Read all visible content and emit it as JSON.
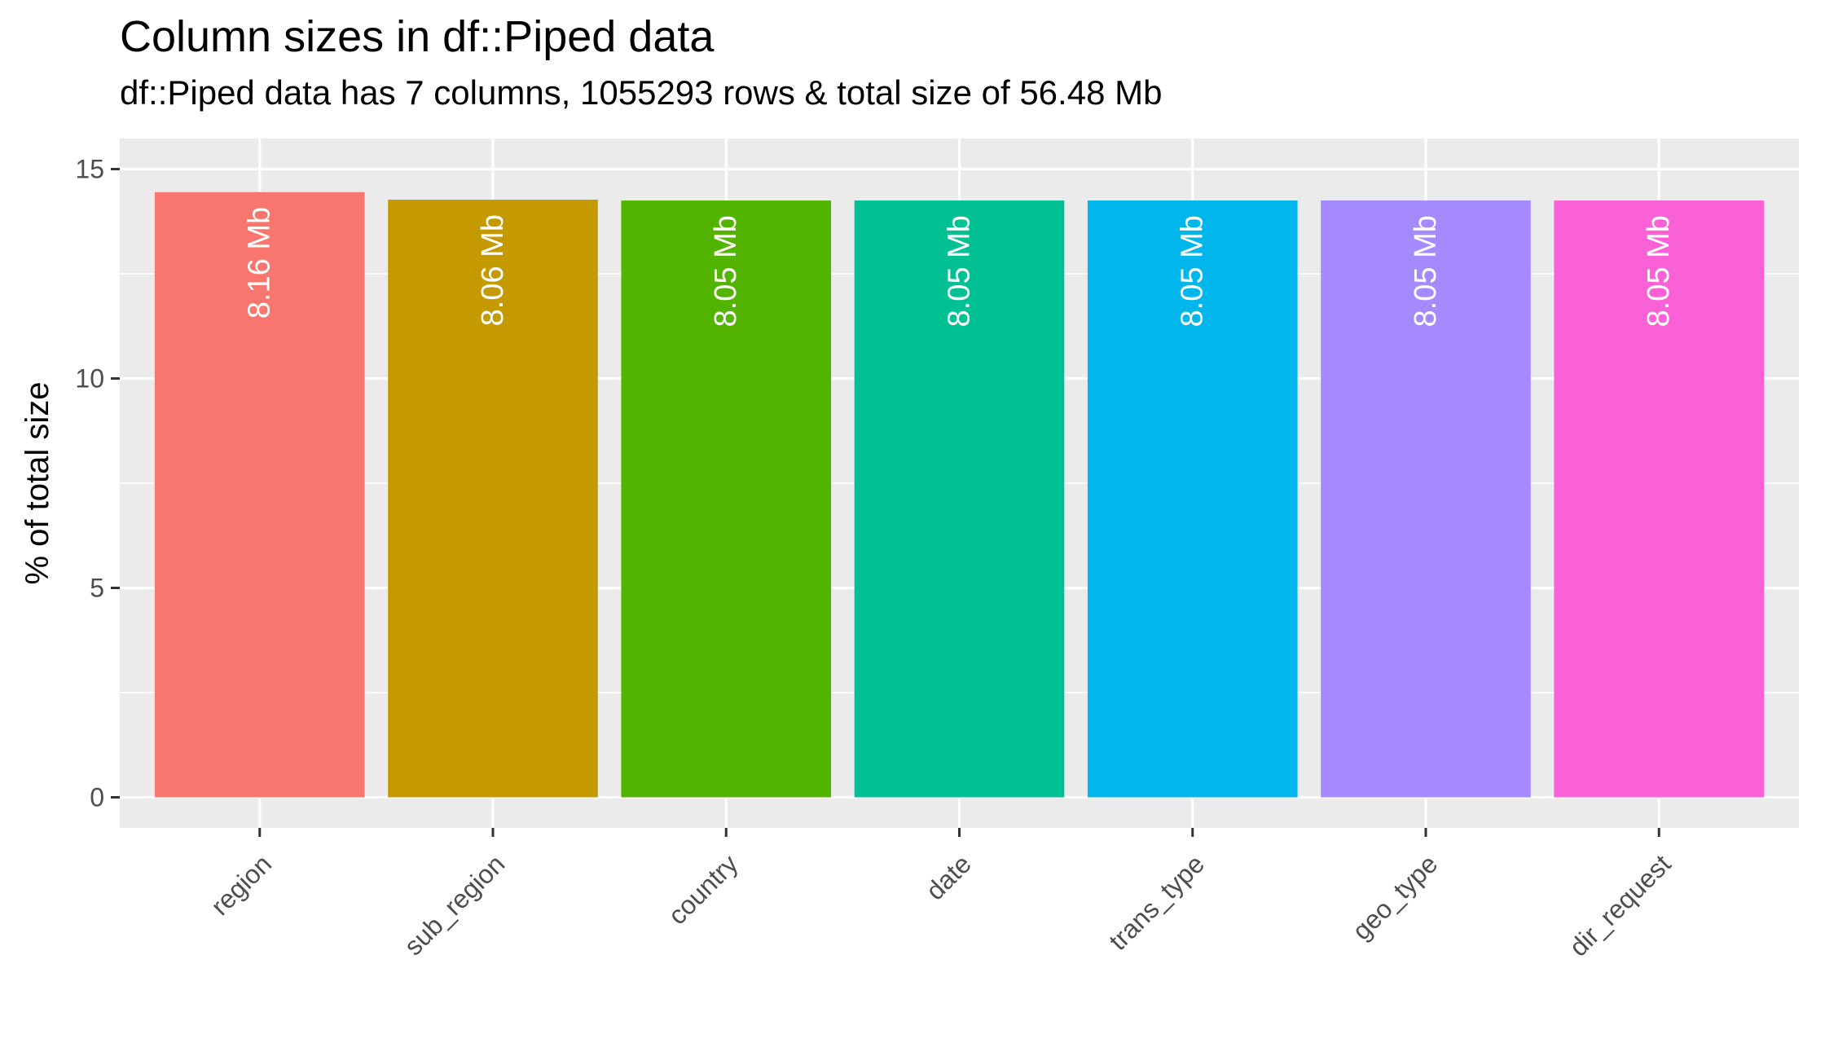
{
  "chart_data": {
    "type": "bar",
    "title": "Column sizes in df::Piped data",
    "subtitle": "df::Piped data has 7 columns, 1055293 rows & total size of 56.48 Mb",
    "xlabel": "",
    "ylabel": "% of total size",
    "ylim": [
      0,
      15
    ],
    "yticks": [
      0,
      5,
      10,
      15
    ],
    "grid": true,
    "categories": [
      "region",
      "sub_region",
      "country",
      "date",
      "trans_type",
      "geo_type",
      "dir_request"
    ],
    "values": [
      14.45,
      14.27,
      14.25,
      14.25,
      14.25,
      14.25,
      14.25
    ],
    "bar_labels": [
      "8.16 Mb",
      "8.06 Mb",
      "8.05 Mb",
      "8.05 Mb",
      "8.05 Mb",
      "8.05 Mb",
      "8.05 Mb"
    ],
    "colors": [
      "#F8766D",
      "#C49A00",
      "#53B400",
      "#00C094",
      "#00B6EB",
      "#A58AFF",
      "#FB61D7"
    ],
    "panel_bg": "#EBEBEB",
    "grid_color": "#FFFFFF"
  }
}
